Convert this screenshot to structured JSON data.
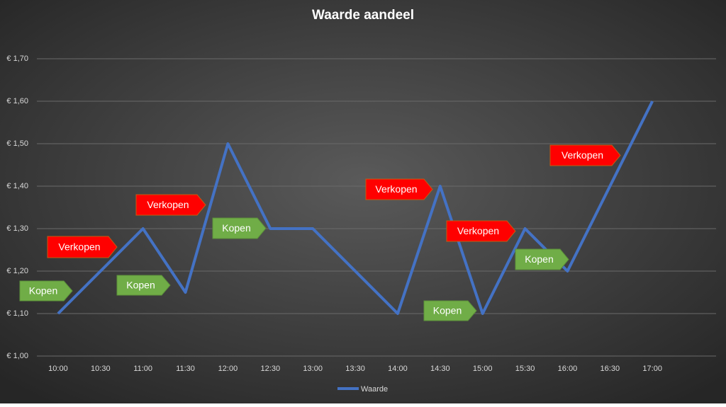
{
  "chart_data": {
    "type": "line",
    "title": "Waarde aandeel",
    "categories": [
      "10:00",
      "10:30",
      "11:00",
      "11:30",
      "12:00",
      "12:30",
      "13:00",
      "13:30",
      "14:00",
      "14:30",
      "15:00",
      "15:30",
      "16:00",
      "16:30",
      "17:00",
      null
    ],
    "series": [
      {
        "name": "Waarde",
        "color": "#4472c4",
        "values": [
          1.1,
          1.2,
          1.3,
          1.15,
          1.5,
          1.3,
          1.3,
          1.2,
          1.1,
          1.4,
          1.1,
          1.3,
          1.2,
          1.4,
          1.6,
          null
        ]
      }
    ],
    "ylim": [
      1.0,
      1.7
    ],
    "yticks": [
      {
        "value": 1.0,
        "label": "€ 1,00"
      },
      {
        "value": 1.1,
        "label": "€ 1,10"
      },
      {
        "value": 1.2,
        "label": "€ 1,20"
      },
      {
        "value": 1.3,
        "label": "€ 1,30"
      },
      {
        "value": 1.4,
        "label": "€ 1,40"
      },
      {
        "value": 1.5,
        "label": "€ 1,50"
      },
      {
        "value": 1.6,
        "label": "€ 1,60"
      },
      {
        "value": 1.7,
        "label": "€ 1,70"
      }
    ],
    "grid": true,
    "legend": "bottom",
    "annotations": [
      {
        "text": "Kopen",
        "color": "#70ad47"
      },
      {
        "text": "Verkopen",
        "color": "#ff0000"
      },
      {
        "text": "Kopen",
        "color": "#70ad47"
      },
      {
        "text": "Verkopen",
        "color": "#ff0000"
      },
      {
        "text": "Kopen",
        "color": "#70ad47"
      },
      {
        "text": "Verkopen",
        "color": "#ff0000"
      },
      {
        "text": "Kopen",
        "color": "#70ad47"
      },
      {
        "text": "Verkopen",
        "color": "#ff0000"
      },
      {
        "text": "Kopen",
        "color": "#70ad47"
      },
      {
        "text": "Verkopen",
        "color": "#ff0000"
      }
    ]
  }
}
